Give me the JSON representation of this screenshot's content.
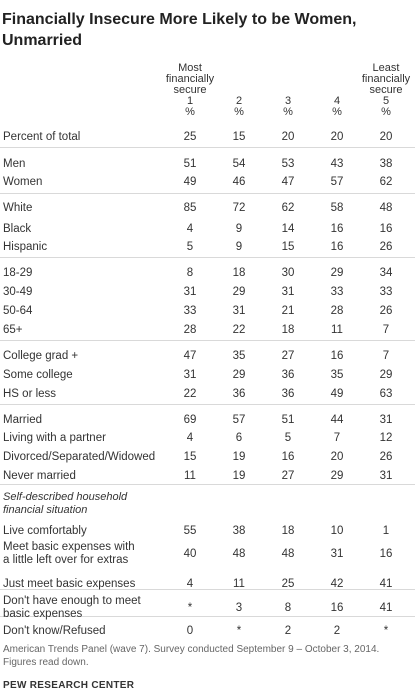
{
  "title": "Financially Insecure More Likely to be Women, Unmarried",
  "columns": [
    {
      "label_lines": [
        "Most",
        "financially",
        "secure"
      ],
      "num": "1",
      "unit": "%"
    },
    {
      "label_lines": [],
      "num": "2",
      "unit": "%"
    },
    {
      "label_lines": [],
      "num": "3",
      "unit": "%"
    },
    {
      "label_lines": [],
      "num": "4",
      "unit": "%"
    },
    {
      "label_lines": [
        "Least",
        "financially",
        "secure"
      ],
      "num": "5",
      "unit": "%"
    }
  ],
  "section_label": "Self-described household financial situation",
  "footer": "American Trends Panel (wave 7). Survey conducted September 9 – October 3, 2014. Figures read down.",
  "source": "PEW RESEARCH CENTER",
  "chart_data": {
    "type": "table",
    "title": "Financially Insecure More Likely to be Women, Unmarried",
    "column_headers": [
      "1 Most financially secure %",
      "2 %",
      "3 %",
      "4 %",
      "5 Least financially secure %"
    ],
    "rows": [
      {
        "label": "Percent of total",
        "values": [
          "25",
          "15",
          "20",
          "20",
          "20"
        ]
      },
      {
        "label": "Men",
        "values": [
          "51",
          "54",
          "53",
          "43",
          "38"
        ]
      },
      {
        "label": "Women",
        "values": [
          "49",
          "46",
          "47",
          "57",
          "62"
        ]
      },
      {
        "label": "White",
        "values": [
          "85",
          "72",
          "62",
          "58",
          "48"
        ]
      },
      {
        "label": "Black",
        "values": [
          "4",
          "9",
          "14",
          "16",
          "16"
        ]
      },
      {
        "label": "Hispanic",
        "values": [
          "5",
          "9",
          "15",
          "16",
          "26"
        ]
      },
      {
        "label": "18-29",
        "values": [
          "8",
          "18",
          "30",
          "29",
          "34"
        ]
      },
      {
        "label": "30-49",
        "values": [
          "31",
          "29",
          "31",
          "33",
          "33"
        ]
      },
      {
        "label": "50-64",
        "values": [
          "33",
          "31",
          "21",
          "28",
          "26"
        ]
      },
      {
        "label": "65+",
        "values": [
          "28",
          "22",
          "18",
          "11",
          "7"
        ]
      },
      {
        "label": "College grad +",
        "values": [
          "47",
          "35",
          "27",
          "16",
          "7"
        ]
      },
      {
        "label": "Some college",
        "values": [
          "31",
          "29",
          "36",
          "35",
          "29"
        ]
      },
      {
        "label": "HS or less",
        "values": [
          "22",
          "36",
          "36",
          "49",
          "63"
        ]
      },
      {
        "label": "Married",
        "values": [
          "69",
          "57",
          "51",
          "44",
          "31"
        ]
      },
      {
        "label": "Living with a partner",
        "values": [
          "4",
          "6",
          "5",
          "7",
          "12"
        ]
      },
      {
        "label": "Divorced/Separated/Widowed",
        "values": [
          "15",
          "19",
          "16",
          "20",
          "26"
        ]
      },
      {
        "label": "Never married",
        "values": [
          "11",
          "19",
          "27",
          "29",
          "31"
        ]
      },
      {
        "label": "Live comfortably",
        "values": [
          "55",
          "38",
          "18",
          "10",
          "1"
        ]
      },
      {
        "label": "Meet basic expenses with a little left over for extras",
        "values": [
          "40",
          "48",
          "48",
          "31",
          "16"
        ]
      },
      {
        "label": "Just meet basic expenses",
        "values": [
          "4",
          "11",
          "25",
          "42",
          "41"
        ]
      },
      {
        "label": "Don't have enough to meet basic expenses",
        "values": [
          "*",
          "3",
          "8",
          "16",
          "41"
        ]
      },
      {
        "label": "Don't know/Refused",
        "values": [
          "0",
          "*",
          "2",
          "2",
          "*"
        ]
      }
    ]
  }
}
